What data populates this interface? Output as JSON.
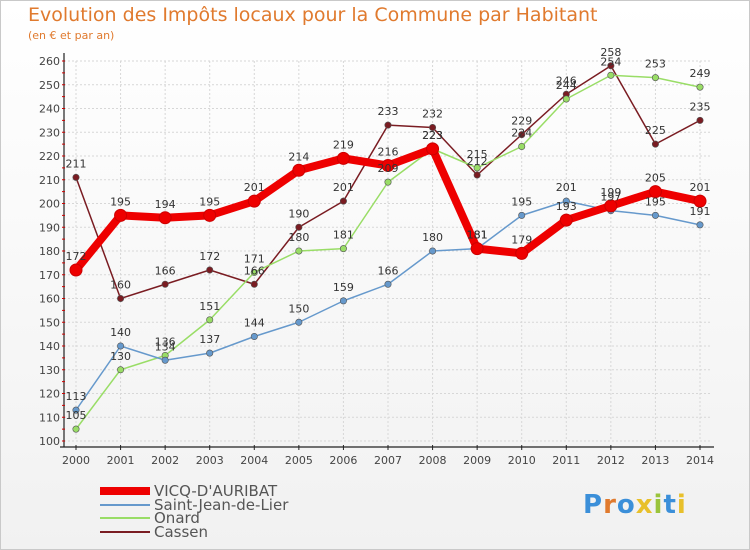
{
  "title": "Evolution des Impôts locaux pour la Commune par Habitant",
  "subtitle": "(en € et par an)",
  "brand": "Proxiti",
  "chart_data": {
    "type": "line",
    "x": [
      2000,
      2001,
      2002,
      2003,
      2004,
      2005,
      2006,
      2007,
      2008,
      2009,
      2010,
      2011,
      2012,
      2013,
      2014
    ],
    "ylim": [
      100,
      260
    ],
    "yticks": [
      100,
      110,
      120,
      130,
      140,
      150,
      160,
      170,
      180,
      190,
      200,
      210,
      220,
      230,
      240,
      250,
      260
    ],
    "grid": true,
    "legend": "bottom-left",
    "series": [
      {
        "name": "Cassen",
        "color": "#7a1c22",
        "values": [
          211,
          160,
          166,
          172,
          166,
          190,
          201,
          233,
          232,
          212,
          229,
          246,
          258,
          225,
          235
        ]
      },
      {
        "name": "Onard",
        "color": "#99dd66",
        "values": [
          105,
          130,
          136,
          151,
          171,
          180,
          181,
          209,
          223,
          215,
          224,
          244,
          254,
          253,
          249
        ]
      },
      {
        "name": "Saint-Jean-de-Lier",
        "color": "#6699cc",
        "values": [
          113,
          140,
          134,
          137,
          144,
          150,
          159,
          166,
          180,
          181,
          195,
          201,
          197,
          195,
          191
        ]
      },
      {
        "name": "VICQ-D'AURIBAT",
        "color": "#ee0000",
        "values": [
          172,
          195,
          194,
          195,
          201,
          214,
          219,
          216,
          223,
          181,
          179,
          193,
          199,
          205,
          201
        ]
      }
    ]
  },
  "legend_items": [
    {
      "name": "VICQ-D'AURIBAT",
      "color": "#ee0000"
    },
    {
      "name": "Saint-Jean-de-Lier",
      "color": "#6699cc"
    },
    {
      "name": "Onard",
      "color": "#99dd66"
    },
    {
      "name": "Cassen",
      "color": "#7a1c22"
    }
  ]
}
